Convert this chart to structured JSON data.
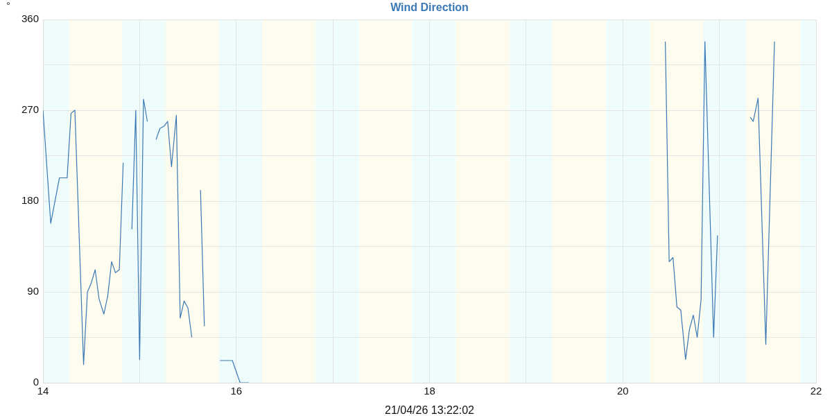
{
  "chart_data": {
    "type": "line",
    "title": "Wind Direction",
    "ylabel": "°",
    "annotations": [
      "21/04/26 13:22:02"
    ],
    "x": [
      14,
      14.08,
      14.17,
      14.25,
      14.29,
      14.33,
      14.42,
      14.46,
      14.5,
      14.54,
      14.58,
      14.63,
      14.67,
      14.71,
      14.75,
      14.79,
      14.83,
      14.875,
      14.92,
      14.96,
      15,
      15.04,
      15.08,
      15.125,
      15.17,
      15.21,
      15.25,
      15.29,
      15.33,
      15.38,
      15.42,
      15.46,
      15.5,
      15.54,
      15.58,
      15.63,
      15.67,
      15.75,
      15.83,
      15.96,
      16.04,
      16.13,
      16.2,
      20.44,
      20.48,
      20.52,
      20.56,
      20.6,
      20.65,
      20.69,
      20.73,
      20.77,
      20.81,
      20.85,
      20.94,
      20.98,
      21.15,
      21.32,
      21.35,
      21.4,
      21.48,
      21.57
    ],
    "values": [
      270,
      158,
      203,
      203,
      267,
      270,
      18,
      90,
      99,
      112,
      83,
      68,
      86,
      120,
      109,
      112,
      218,
      null,
      152,
      270,
      23,
      281,
      259,
      null,
      241,
      252,
      254,
      259,
      214,
      265,
      64,
      81,
      74,
      45,
      null,
      191,
      56,
      null,
      22,
      22,
      0,
      0,
      null,
      338,
      120,
      124,
      75,
      72,
      23,
      53,
      67,
      45,
      82,
      338,
      45,
      146,
      null,
      263,
      259,
      282,
      38,
      338
    ],
    "color": "#3a78b5",
    "marker": "none",
    "line_style": "solid",
    "xlim": [
      14,
      22
    ],
    "xticks": [
      14,
      {
        "value": 15,
        "label": null
      },
      16,
      {
        "value": 17,
        "label": null
      },
      18,
      {
        "value": 19,
        "label": null
      },
      20,
      {
        "value": 21,
        "label": null
      },
      22
    ],
    "ylim": [
      0,
      360
    ],
    "yticks": [
      0,
      {
        "value": 45,
        "label": null
      },
      90,
      {
        "value": 135,
        "label": null
      },
      180,
      {
        "value": 225,
        "label": null
      },
      270,
      {
        "value": 315,
        "label": null
      },
      360
    ],
    "grid": true,
    "bands": [
      {
        "axis": "x",
        "from": 14,
        "to": 14.27,
        "color": "#effcfc"
      },
      {
        "axis": "x",
        "from": 14.27,
        "to": 14.82,
        "color": "#fdfcee"
      },
      {
        "axis": "x",
        "from": 14.82,
        "to": 15.27,
        "color": "#effcfc"
      },
      {
        "axis": "x",
        "from": 15.27,
        "to": 15.82,
        "color": "#fdfcee"
      },
      {
        "axis": "x",
        "from": 15.82,
        "to": 16.27,
        "color": "#effcfc"
      },
      {
        "axis": "x",
        "from": 16.27,
        "to": 16.82,
        "color": "#fdfcee"
      },
      {
        "axis": "x",
        "from": 16.82,
        "to": 17.27,
        "color": "#effcfc"
      },
      {
        "axis": "x",
        "from": 17.27,
        "to": 17.82,
        "color": "#fdfcee"
      },
      {
        "axis": "x",
        "from": 17.82,
        "to": 18.27,
        "color": "#effcfc"
      },
      {
        "axis": "x",
        "from": 18.27,
        "to": 18.83,
        "color": "#fdfcee"
      },
      {
        "axis": "x",
        "from": 18.83,
        "to": 19.27,
        "color": "#effcfc"
      },
      {
        "axis": "x",
        "from": 19.27,
        "to": 19.83,
        "color": "#fdfcee"
      },
      {
        "axis": "x",
        "from": 19.83,
        "to": 20.28,
        "color": "#effcfc"
      },
      {
        "axis": "x",
        "from": 20.28,
        "to": 20.83,
        "color": "#fdfcee"
      },
      {
        "axis": "x",
        "from": 20.83,
        "to": 21.28,
        "color": "#effcfc"
      },
      {
        "axis": "x",
        "from": 21.28,
        "to": 21.84,
        "color": "#fdfcee"
      },
      {
        "axis": "x",
        "from": 21.84,
        "to": 22,
        "color": "#effcfc"
      }
    ]
  }
}
